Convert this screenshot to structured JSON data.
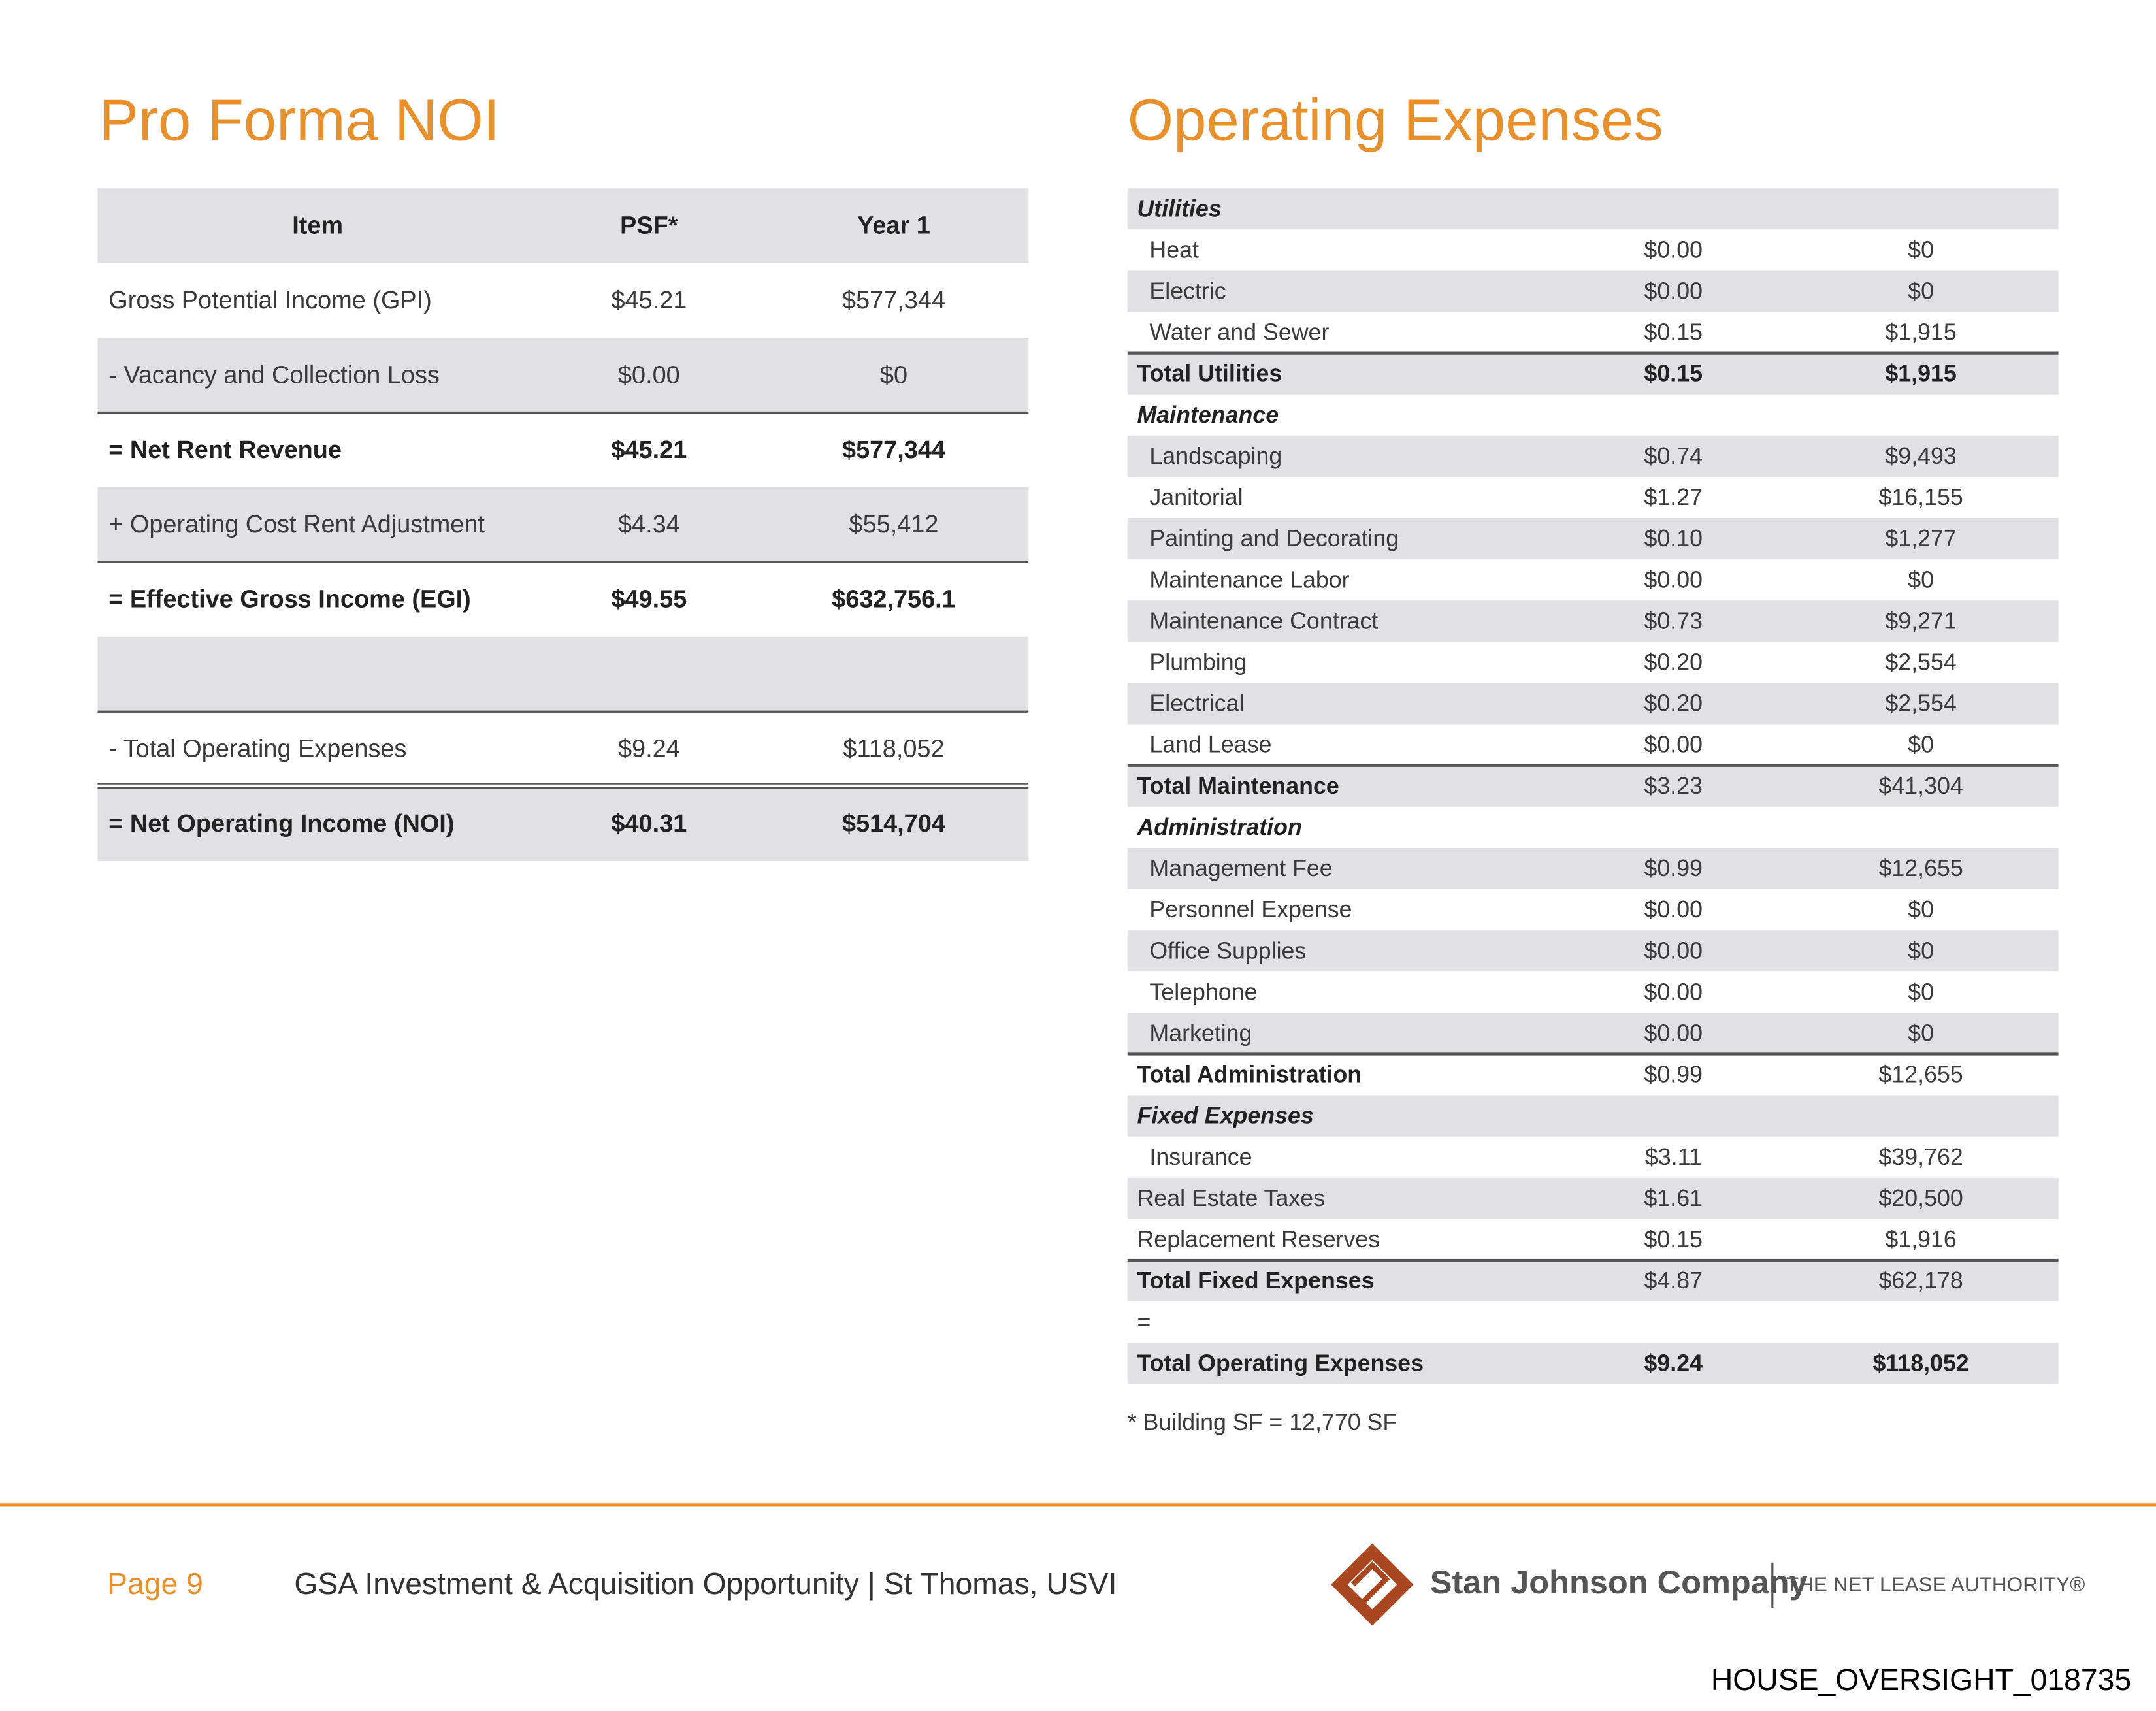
{
  "pro_forma": {
    "title": "Pro Forma NOI",
    "headers": [
      "Item",
      "PSF*",
      "Year 1"
    ],
    "rows": [
      [
        "Gross Potential Income (GPI)",
        "$45.21",
        "$577,344"
      ],
      [
        "- Vacancy and Collection Loss",
        "$0.00",
        "$0"
      ],
      [
        "= Net Rent Revenue",
        "$45.21",
        "$577,344"
      ],
      [
        "+ Operating Cost Rent Adjustment",
        "$4.34",
        "$55,412"
      ],
      [
        "= Effective Gross Income (EGI)",
        "$49.55",
        "$632,756.1"
      ],
      [
        "- Total Operating Expenses",
        "$9.24",
        "$118,052"
      ],
      [
        "= Net Operating Income (NOI)",
        "$40.31",
        "$514,704"
      ]
    ]
  },
  "operating_expenses": {
    "title": "Operating Expenses",
    "rows": [
      [
        "Utilities"
      ],
      [
        "Heat",
        "$0.00",
        "$0"
      ],
      [
        "Electric",
        "$0.00",
        "$0"
      ],
      [
        "Water and Sewer",
        "$0.15",
        "$1,915"
      ],
      [
        "Total Utilities",
        "$0.15",
        "$1,915"
      ],
      [
        "Maintenance"
      ],
      [
        "Landscaping",
        "$0.74",
        "$9,493"
      ],
      [
        "Janitorial",
        "$1.27",
        "$16,155"
      ],
      [
        "Painting and Decorating",
        "$0.10",
        "$1,277"
      ],
      [
        "Maintenance Labor",
        "$0.00",
        "$0"
      ],
      [
        "Maintenance Contract",
        "$0.73",
        "$9,271"
      ],
      [
        "Plumbing",
        "$0.20",
        "$2,554"
      ],
      [
        "Electrical",
        "$0.20",
        "$2,554"
      ],
      [
        "Land Lease",
        "$0.00",
        "$0"
      ],
      [
        "Total Maintenance",
        "$3.23",
        "$41,304"
      ],
      [
        "Administration"
      ],
      [
        "Management Fee",
        "$0.99",
        "$12,655"
      ],
      [
        "Personnel Expense",
        "$0.00",
        "$0"
      ],
      [
        "Office Supplies",
        "$0.00",
        "$0"
      ],
      [
        "Telephone",
        "$0.00",
        "$0"
      ],
      [
        "Marketing",
        "$0.00",
        "$0"
      ],
      [
        "Total Administration",
        "$0.99",
        "$12,655"
      ],
      [
        "Fixed Expenses"
      ],
      [
        "Insurance",
        "$3.11",
        "$39,762"
      ],
      [
        "Real Estate Taxes",
        "$1.61",
        "$20,500"
      ],
      [
        "Replacement Reserves",
        "$0.15",
        "$1,916"
      ],
      [
        "Total Fixed Expenses",
        "$4.87",
        "$62,178"
      ],
      [
        "="
      ],
      [
        "Total Operating Expenses",
        "$9.24",
        "$118,052"
      ]
    ],
    "footnote": "* Building SF = 12,770 SF"
  },
  "footer": {
    "page": "Page 9",
    "title": "GSA Investment & Acquisition Opportunity | St Thomas, USVI",
    "company": "Stan Johnson Company",
    "tagline": "THE NET LEASE AUTHORITY®",
    "bates": "HOUSE_OVERSIGHT_018735"
  }
}
